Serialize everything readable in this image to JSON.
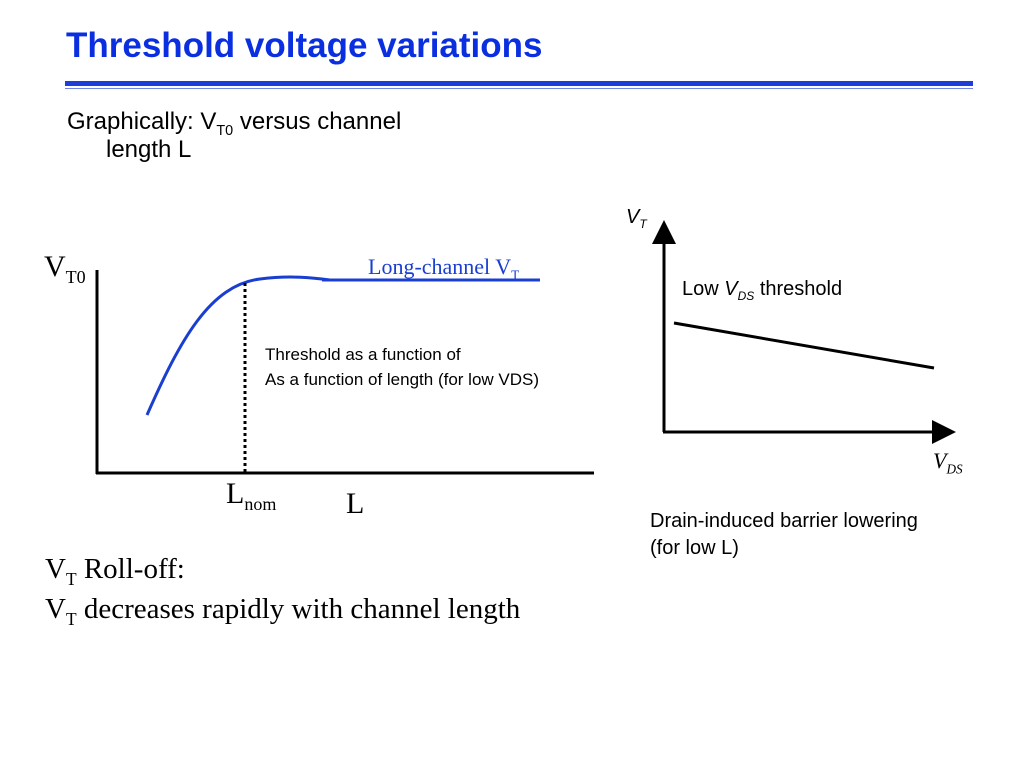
{
  "title": "Threshold voltage variations",
  "intro": {
    "line1_a": "Graphically: V",
    "line1_sub": "T0",
    "line1_b": " versus channel",
    "line2": "length L"
  },
  "left_chart": {
    "y_label": "V",
    "y_label_sub": "T0",
    "x_label": "L",
    "x_marker": "L",
    "x_marker_sub": "nom",
    "curve_label": "Long-channel V",
    "curve_label_sub": "T",
    "annotation_line1": "Threshold as a function of",
    "annotation_line2": "As a function of length (for low VDS)",
    "curve_color": "#1a3fd0"
  },
  "right_chart": {
    "y_label": "V",
    "y_label_sub": "T",
    "x_label": "V",
    "x_label_sub": "DS",
    "line_label_a": "Low ",
    "line_label_v": "V",
    "line_label_sub": "DS",
    "line_label_b": " threshold",
    "caption_line1": "Drain-induced barrier lowering",
    "caption_line2": "(for low L)"
  },
  "rolloff": {
    "l1_a": "V",
    "l1_sub": "T",
    "l1_b": " Roll-off:",
    "l2_a": "V",
    "l2_sub": "T",
    "l2_b": " decreases rapidly with channel length"
  }
}
